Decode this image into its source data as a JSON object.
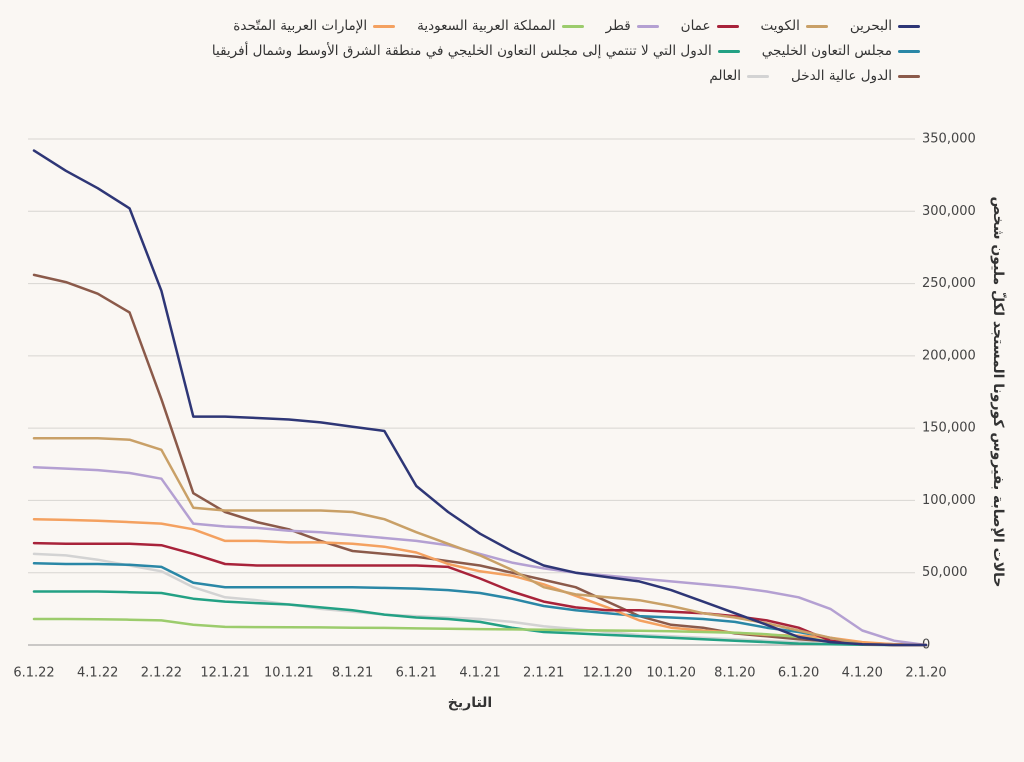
{
  "chart_data": {
    "type": "line",
    "x_label": "التاريخ",
    "y_label": "حالات الإصابة بفيروس كورونا المستجد لكلّ مليون شخص",
    "categories": [
      "2.1.20",
      null,
      "4.1.20",
      null,
      "6.1.20",
      null,
      "8.1.20",
      null,
      "10.1.20",
      null,
      "12.1.20",
      null,
      "2.1.21",
      null,
      "4.1.21",
      null,
      "6.1.21",
      null,
      "8.1.21",
      null,
      "10.1.21",
      null,
      "12.1.21",
      null,
      "2.1.22",
      null,
      "4.1.22",
      null,
      "6.1.22"
    ],
    "x_reversed": true,
    "ylim": [
      0,
      350000
    ],
    "yticks": [
      0,
      {
        "value": 50000,
        "label": "50,000"
      },
      {
        "value": 100000,
        "label": "100,000"
      },
      {
        "value": 150000,
        "label": "150,000"
      },
      {
        "value": 200000,
        "label": "200,000"
      },
      {
        "value": 250000,
        "label": "250,000"
      },
      {
        "value": 300000,
        "label": "300,000"
      },
      {
        "value": 350000,
        "label": "350,000"
      }
    ],
    "grid": true,
    "y_axis_side": "right",
    "series": [
      {
        "name": "البحرين",
        "color": "#2e3676",
        "values": [
          0,
          0,
          500,
          2000,
          5500,
          14000,
          22000,
          30000,
          38000,
          44000,
          47000,
          50000,
          55000,
          65000,
          77000,
          92000,
          110000,
          148000,
          151000,
          154000,
          156000,
          157000,
          158000,
          158000,
          245000,
          302000,
          316000,
          328000,
          342000
        ]
      },
      {
        "name": "الكويت",
        "color": "#c9a067",
        "values": [
          0,
          0,
          500,
          5000,
          10000,
          15000,
          19000,
          22000,
          27000,
          31000,
          33000,
          35000,
          40000,
          52000,
          62000,
          70000,
          78000,
          87000,
          92000,
          93000,
          93000,
          93000,
          93000,
          95000,
          135000,
          142000,
          143000,
          143000,
          143000
        ]
      },
      {
        "name": "عمان",
        "color": "#a8233a",
        "values": [
          0,
          0,
          500,
          3000,
          12000,
          17000,
          20000,
          22000,
          23000,
          24000,
          24000,
          26000,
          30000,
          37000,
          46000,
          54000,
          55000,
          55000,
          55000,
          55000,
          55000,
          55000,
          56000,
          63000,
          69000,
          70000,
          70000,
          70000,
          70500
        ]
      },
      {
        "name": "قطر",
        "color": "#b4a0d2",
        "values": [
          0,
          3000,
          10000,
          25000,
          33000,
          37000,
          40000,
          42000,
          44000,
          46000,
          48000,
          50000,
          53000,
          57000,
          63000,
          69000,
          72000,
          74000,
          76000,
          78000,
          79000,
          81000,
          82000,
          84000,
          115000,
          119000,
          121000,
          122000,
          123000
        ]
      },
      {
        "name": "المملكة العربية السعودية",
        "color": "#9ccc6c",
        "values": [
          0,
          0,
          500,
          2500,
          5500,
          7500,
          8500,
          9000,
          9500,
          9800,
          10000,
          10200,
          10500,
          10800,
          11000,
          11200,
          11500,
          11800,
          12000,
          12200,
          12300,
          12400,
          12500,
          14000,
          17000,
          17500,
          17800,
          18000,
          18000
        ]
      },
      {
        "name": "الإمارات العربية المتّحدة",
        "color": "#f4a160",
        "values": [
          0,
          500,
          2000,
          5000,
          6500,
          7000,
          8500,
          10000,
          12000,
          17000,
          26000,
          34000,
          42000,
          48000,
          51000,
          56000,
          64000,
          68000,
          70000,
          71000,
          71000,
          72000,
          72000,
          80000,
          84000,
          85000,
          86000,
          86500,
          87000
        ]
      },
      {
        "name": "مجلس التعاون الخليجي",
        "color": "#2a87a6",
        "values": [
          0,
          0,
          1000,
          5000,
          9000,
          12000,
          16000,
          18000,
          19000,
          20000,
          22000,
          24000,
          27000,
          32000,
          36000,
          38000,
          39000,
          39500,
          40000,
          40000,
          40000,
          40000,
          40000,
          43000,
          54000,
          55500,
          56000,
          56000,
          56500
        ]
      },
      {
        "name": "الدول التي لا تنتمي إلى مجلس التعاون الخليجي في منطقة الشرق الأوسط وشمال أفريقيا",
        "color": "#23a184",
        "values": [
          0,
          0,
          200,
          500,
          1000,
          2000,
          3000,
          4000,
          5000,
          6000,
          7000,
          8000,
          9000,
          12000,
          16000,
          18000,
          19000,
          21000,
          24000,
          26000,
          28000,
          29000,
          30000,
          32000,
          36000,
          36500,
          37000,
          37000,
          37000
        ]
      },
      {
        "name": "الدول عالية الدخل",
        "color": "#8b5a4a",
        "values": [
          0,
          500,
          1500,
          2500,
          4000,
          6000,
          8000,
          12000,
          14000,
          20000,
          30000,
          40000,
          45000,
          50000,
          55000,
          58000,
          61000,
          63000,
          65000,
          72000,
          80000,
          85000,
          92000,
          105000,
          170000,
          230000,
          243000,
          251000,
          256000
        ]
      },
      {
        "name": "العالم",
        "color": "#d3d3d3",
        "values": [
          0,
          100,
          200,
          1000,
          2000,
          3000,
          4000,
          5000,
          6000,
          7000,
          9000,
          11000,
          13000,
          16000,
          18000,
          19000,
          20000,
          21000,
          23000,
          25000,
          28000,
          31000,
          33000,
          40000,
          51000,
          55000,
          59000,
          62000,
          63000
        ]
      }
    ]
  }
}
